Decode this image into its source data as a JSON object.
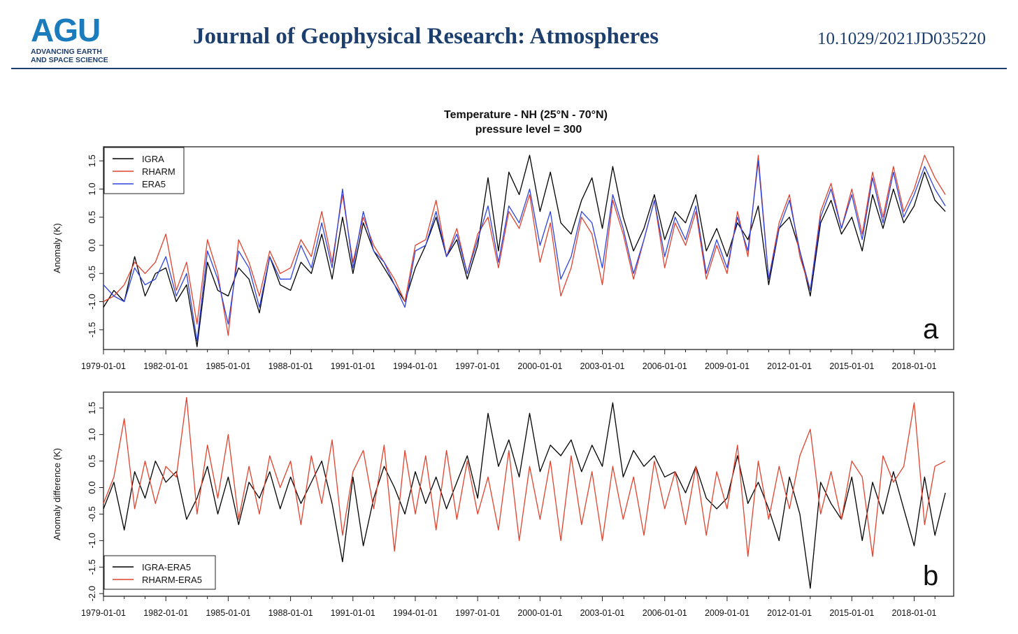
{
  "header": {
    "logo_mark": "AGU",
    "logo_line1": "ADVANCING EARTH",
    "logo_line2": "AND SPACE SCIENCE",
    "journal": "Journal of Geophysical Research: Atmospheres",
    "doi": "10.1029/2021JD035220"
  },
  "figure": {
    "title_line1": "Temperature - NH (25°N - 70°N)",
    "title_line2": "pressure level = 300"
  },
  "chart_data": [
    {
      "type": "line",
      "panel_label": "a",
      "xlabel": "",
      "ylabel": "Anomaly (K)",
      "xlim": [
        1979.0,
        2019.9
      ],
      "ylim": [
        -1.85,
        1.75
      ],
      "xticks": [
        1979,
        1982,
        1985,
        1988,
        1991,
        1994,
        1997,
        2000,
        2003,
        2006,
        2009,
        2012,
        2015,
        2018
      ],
      "xtick_labels": [
        "1979-01-01",
        "1982-01-01",
        "1985-01-01",
        "1988-01-01",
        "1991-01-01",
        "1994-01-01",
        "1997-01-01",
        "2000-01-01",
        "2003-01-01",
        "2006-01-01",
        "2009-01-01",
        "2012-01-01",
        "2015-01-01",
        "2018-01-01"
      ],
      "yticks": [
        -1.5,
        -1.0,
        -0.5,
        0.0,
        0.5,
        1.0,
        1.5
      ],
      "ytick_labels": [
        "-1.5",
        "-1.0",
        "-0.5",
        "0.0",
        "0.5",
        "1.0",
        "1.5"
      ],
      "legend_position": "top-left",
      "x": [
        1979.0,
        1979.5,
        1980.0,
        1980.5,
        1981.0,
        1981.5,
        1982.0,
        1982.5,
        1983.0,
        1983.5,
        1984.0,
        1984.5,
        1985.0,
        1985.5,
        1986.0,
        1986.5,
        1987.0,
        1987.5,
        1988.0,
        1988.5,
        1989.0,
        1989.5,
        1990.0,
        1990.5,
        1991.0,
        1991.5,
        1992.0,
        1992.5,
        1993.0,
        1993.5,
        1994.0,
        1994.5,
        1995.0,
        1995.5,
        1996.0,
        1996.5,
        1997.0,
        1997.5,
        1998.0,
        1998.5,
        1999.0,
        1999.5,
        2000.0,
        2000.5,
        2001.0,
        2001.5,
        2002.0,
        2002.5,
        2003.0,
        2003.5,
        2004.0,
        2004.5,
        2005.0,
        2005.5,
        2006.0,
        2006.5,
        2007.0,
        2007.5,
        2008.0,
        2008.5,
        2009.0,
        2009.5,
        2010.0,
        2010.5,
        2011.0,
        2011.5,
        2012.0,
        2012.5,
        2013.0,
        2013.5,
        2014.0,
        2014.5,
        2015.0,
        2015.5,
        2016.0,
        2016.5,
        2017.0,
        2017.5,
        2018.0,
        2018.5,
        2019.0,
        2019.5
      ],
      "series": [
        {
          "name": "IGRA",
          "color": "#000000",
          "values": [
            -1.1,
            -0.8,
            -1.0,
            -0.2,
            -0.9,
            -0.5,
            -0.4,
            -1.0,
            -0.7,
            -1.8,
            -0.3,
            -0.8,
            -0.9,
            -0.4,
            -0.6,
            -1.2,
            -0.2,
            -0.7,
            -0.8,
            -0.3,
            -0.5,
            0.2,
            -0.6,
            0.5,
            -0.5,
            0.4,
            -0.1,
            -0.4,
            -0.7,
            -1.0,
            -0.4,
            0.0,
            0.5,
            -0.2,
            0.1,
            -0.6,
            0.0,
            1.2,
            -0.1,
            1.3,
            0.9,
            1.6,
            0.6,
            1.3,
            0.4,
            0.2,
            0.8,
            1.2,
            0.3,
            1.4,
            0.5,
            -0.1,
            0.3,
            0.9,
            0.1,
            0.6,
            0.4,
            0.9,
            -0.1,
            0.3,
            -0.2,
            0.4,
            0.1,
            0.7,
            -0.7,
            0.3,
            0.5,
            -0.1,
            -0.9,
            0.4,
            0.8,
            0.2,
            0.5,
            -0.1,
            0.9,
            0.3,
            1.0,
            0.4,
            0.7,
            1.3,
            0.8,
            0.6
          ]
        },
        {
          "name": "RHARM",
          "color": "#e0432e",
          "values": [
            -1.0,
            -0.9,
            -0.7,
            -0.3,
            -0.5,
            -0.3,
            0.2,
            -0.8,
            -0.3,
            -1.4,
            0.1,
            -0.5,
            -1.6,
            0.1,
            -0.3,
            -0.9,
            -0.1,
            -0.5,
            -0.4,
            0.1,
            -0.2,
            0.6,
            -0.3,
            0.9,
            -0.3,
            0.5,
            0.0,
            -0.3,
            -0.6,
            -1.0,
            0.0,
            0.1,
            0.8,
            -0.2,
            0.3,
            -0.5,
            0.2,
            0.5,
            -0.4,
            0.6,
            0.3,
            0.9,
            -0.3,
            0.4,
            -0.9,
            -0.4,
            0.5,
            0.2,
            -0.7,
            0.8,
            0.2,
            -0.6,
            0.1,
            0.8,
            -0.4,
            0.4,
            0.0,
            0.6,
            -0.6,
            0.0,
            -0.5,
            0.6,
            -0.2,
            1.6,
            -0.6,
            0.4,
            0.9,
            -0.2,
            -0.8,
            0.6,
            1.1,
            0.3,
            1.0,
            0.2,
            1.3,
            0.5,
            1.4,
            0.6,
            1.0,
            1.6,
            1.2,
            0.9
          ]
        },
        {
          "name": "ERA5",
          "color": "#2e44e0",
          "values": [
            -0.7,
            -0.9,
            -1.0,
            -0.4,
            -0.7,
            -0.6,
            -0.2,
            -0.9,
            -0.5,
            -1.7,
            -0.1,
            -0.6,
            -1.4,
            -0.1,
            -0.4,
            -1.1,
            -0.2,
            -0.6,
            -0.6,
            0.0,
            -0.4,
            0.4,
            -0.4,
            1.0,
            -0.4,
            0.6,
            -0.1,
            -0.3,
            -0.7,
            -1.1,
            -0.1,
            0.0,
            0.6,
            -0.2,
            0.2,
            -0.5,
            0.1,
            0.7,
            -0.3,
            0.7,
            0.4,
            1.0,
            0.0,
            0.6,
            -0.6,
            -0.2,
            0.6,
            0.4,
            -0.4,
            0.9,
            0.3,
            -0.5,
            0.1,
            0.8,
            -0.2,
            0.5,
            0.1,
            0.7,
            -0.5,
            0.1,
            -0.4,
            0.5,
            -0.1,
            1.5,
            -0.6,
            0.3,
            0.8,
            -0.1,
            -0.8,
            0.5,
            1.0,
            0.3,
            0.9,
            0.1,
            1.2,
            0.4,
            1.3,
            0.5,
            0.9,
            1.4,
            1.0,
            0.7
          ]
        }
      ]
    },
    {
      "type": "line",
      "panel_label": "b",
      "xlabel": "",
      "ylabel": "Anomaly difference (K)",
      "xlim": [
        1979.0,
        2019.9
      ],
      "ylim": [
        -2.05,
        1.8
      ],
      "xticks": [
        1979,
        1982,
        1985,
        1988,
        1991,
        1994,
        1997,
        2000,
        2003,
        2006,
        2009,
        2012,
        2015,
        2018
      ],
      "xtick_labels": [
        "1979-01-01",
        "1982-01-01",
        "1985-01-01",
        "1988-01-01",
        "1991-01-01",
        "1994-01-01",
        "1997-01-01",
        "2000-01-01",
        "2003-01-01",
        "2006-01-01",
        "2009-01-01",
        "2012-01-01",
        "2015-01-01",
        "2018-01-01"
      ],
      "yticks": [
        -2.0,
        -1.5,
        -1.0,
        -0.5,
        0.0,
        0.5,
        1.0,
        1.5
      ],
      "ytick_labels": [
        "-2.0",
        "-1.5",
        "-1.0",
        "-0.5",
        "0.0",
        "0.5",
        "1.0",
        "1.5"
      ],
      "legend_position": "bottom-left",
      "x": [
        1979.0,
        1979.5,
        1980.0,
        1980.5,
        1981.0,
        1981.5,
        1982.0,
        1982.5,
        1983.0,
        1983.5,
        1984.0,
        1984.5,
        1985.0,
        1985.5,
        1986.0,
        1986.5,
        1987.0,
        1987.5,
        1988.0,
        1988.5,
        1989.0,
        1989.5,
        1990.0,
        1990.5,
        1991.0,
        1991.5,
        1992.0,
        1992.5,
        1993.0,
        1993.5,
        1994.0,
        1994.5,
        1995.0,
        1995.5,
        1996.0,
        1996.5,
        1997.0,
        1997.5,
        1998.0,
        1998.5,
        1999.0,
        1999.5,
        2000.0,
        2000.5,
        2001.0,
        2001.5,
        2002.0,
        2002.5,
        2003.0,
        2003.5,
        2004.0,
        2004.5,
        2005.0,
        2005.5,
        2006.0,
        2006.5,
        2007.0,
        2007.5,
        2008.0,
        2008.5,
        2009.0,
        2009.5,
        2010.0,
        2010.5,
        2011.0,
        2011.5,
        2012.0,
        2012.5,
        2013.0,
        2013.5,
        2014.0,
        2014.5,
        2015.0,
        2015.5,
        2016.0,
        2016.5,
        2017.0,
        2017.5,
        2018.0,
        2018.5,
        2019.0,
        2019.5
      ],
      "series": [
        {
          "name": "IGRA-ERA5",
          "color": "#000000",
          "values": [
            -0.4,
            0.1,
            -0.8,
            0.3,
            -0.2,
            0.5,
            0.1,
            0.3,
            -0.6,
            -0.2,
            0.4,
            -0.5,
            0.2,
            -0.7,
            0.1,
            -0.2,
            0.3,
            -0.4,
            0.2,
            -0.3,
            0.1,
            0.5,
            -0.3,
            -1.4,
            0.2,
            -1.1,
            -0.2,
            0.4,
            0.0,
            -0.5,
            0.3,
            -0.3,
            0.2,
            -0.4,
            0.1,
            0.6,
            -0.2,
            1.4,
            0.4,
            0.9,
            0.2,
            1.4,
            0.3,
            0.8,
            0.6,
            0.9,
            0.3,
            0.8,
            0.4,
            1.6,
            0.2,
            0.7,
            0.4,
            0.6,
            0.2,
            0.3,
            -0.1,
            0.4,
            -0.2,
            -0.4,
            -0.2,
            0.6,
            -0.3,
            0.1,
            -0.4,
            -1.0,
            0.2,
            -0.5,
            -1.9,
            0.1,
            -0.3,
            -0.6,
            0.2,
            -1.0,
            0.1,
            -0.5,
            0.3,
            -0.4,
            -1.1,
            0.2,
            -0.9,
            -0.1
          ]
        },
        {
          "name": "RHARM-ERA5",
          "color": "#e0432e",
          "values": [
            -0.3,
            0.2,
            1.3,
            -0.4,
            0.5,
            -0.3,
            0.4,
            0.2,
            1.7,
            -0.5,
            0.8,
            -0.2,
            1.0,
            -0.6,
            0.4,
            -0.5,
            0.6,
            0.0,
            0.5,
            -0.7,
            0.6,
            -0.3,
            0.9,
            -0.9,
            0.3,
            0.7,
            -0.4,
            0.8,
            -1.2,
            0.7,
            -0.5,
            0.6,
            -0.8,
            0.7,
            -0.6,
            0.5,
            -0.5,
            0.2,
            -0.8,
            0.7,
            -1.0,
            0.4,
            -0.6,
            0.5,
            -1.0,
            0.6,
            -0.7,
            0.3,
            -1.0,
            0.4,
            -0.6,
            0.2,
            -0.9,
            0.5,
            -0.4,
            0.3,
            -0.7,
            0.4,
            -0.9,
            0.3,
            -0.4,
            0.8,
            -1.3,
            0.5,
            -0.6,
            0.4,
            -0.4,
            0.6,
            1.1,
            -0.5,
            0.3,
            -0.6,
            0.5,
            0.2,
            -1.3,
            0.6,
            0.1,
            0.4,
            1.6,
            -0.7,
            0.4,
            0.5
          ]
        }
      ]
    }
  ]
}
